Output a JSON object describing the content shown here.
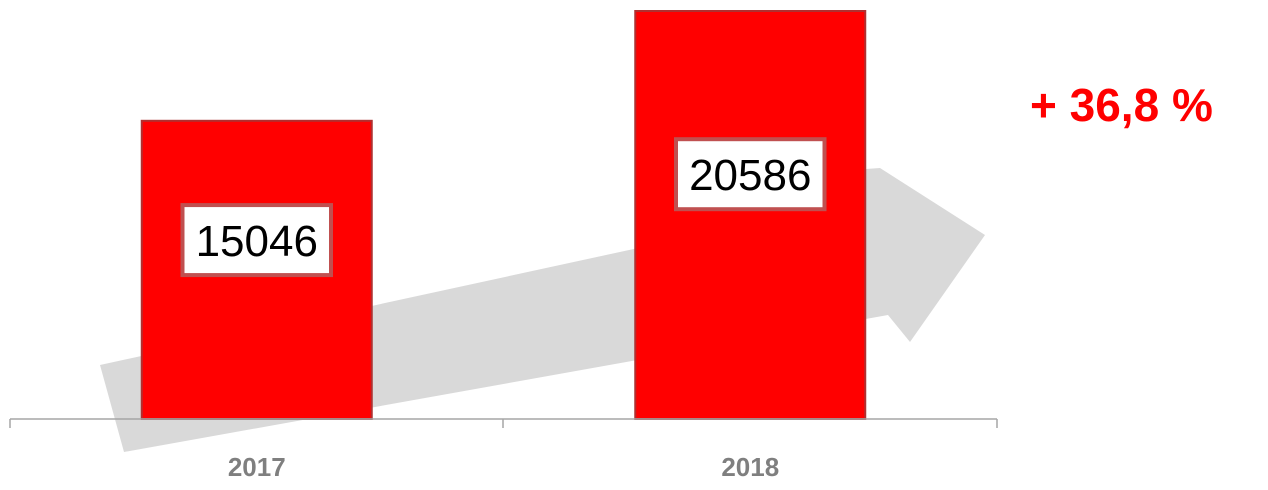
{
  "chart_data": {
    "type": "bar",
    "categories": [
      "2017",
      "2018"
    ],
    "values": [
      15046,
      20586
    ],
    "title": "",
    "xlabel": "",
    "ylabel": "",
    "ylim": [
      0,
      20586
    ],
    "grid": false,
    "legend": "none"
  },
  "annotation": {
    "growth_label": "+ 36,8 %"
  },
  "colors": {
    "bar": "#ff0000",
    "bar_border": "#b03030",
    "label_box_border": "#c05050",
    "arrow": "#d9d9d9",
    "axis": "#a6a6a6",
    "tick_text": "#7f7f7f",
    "growth_text": "#ff0000"
  }
}
